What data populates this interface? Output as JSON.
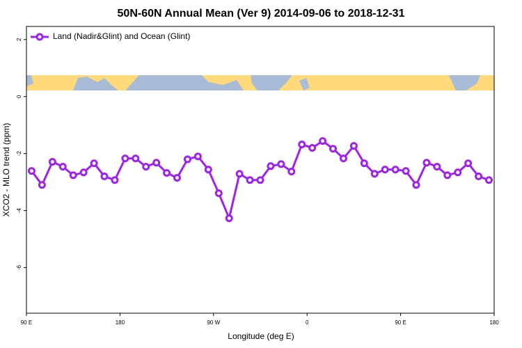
{
  "chart_data": {
    "type": "line",
    "title": "50N-60N Annual Mean (Ver 9)   2014-09-06 to 2018-12-31",
    "x_label": "Longitude (deg E)",
    "y_label": "XCO2 - MLO trend (ppm)",
    "x": [
      95,
      105,
      115,
      125,
      135,
      145,
      155,
      165,
      175,
      185,
      195,
      205,
      215,
      225,
      235,
      245,
      255,
      265,
      275,
      285,
      295,
      305,
      315,
      325,
      335,
      345,
      355,
      365,
      375,
      385,
      395,
      405,
      415,
      425,
      435,
      445,
      455,
      465,
      475,
      485,
      495,
      505,
      515,
      525,
      535
    ],
    "series": [
      {
        "name": "Land (Nadir&Glint) and Ocean (Glint)",
        "color": "#a020f0",
        "values": [
          -2.61,
          -3.1,
          -2.29,
          -2.46,
          -2.76,
          -2.66,
          -2.34,
          -2.8,
          -2.93,
          -2.17,
          -2.17,
          -2.46,
          -2.32,
          -2.68,
          -2.85,
          -2.2,
          -2.1,
          -2.56,
          -3.39,
          -4.27,
          -2.71,
          -2.93,
          -2.93,
          -2.44,
          -2.37,
          -2.63,
          -1.68,
          -1.8,
          -1.56,
          -1.83,
          -2.17,
          -1.73,
          -2.34,
          -2.71,
          -2.56,
          -2.56,
          -2.61,
          -3.1,
          -2.32,
          -2.46,
          -2.76,
          -2.66,
          -2.34,
          -2.8,
          -2.93
        ]
      }
    ],
    "xlim": [
      90,
      540
    ],
    "xticks": [
      {
        "value": 90,
        "label": "90 E"
      },
      180,
      {
        "value": 270,
        "label": "90 W"
      },
      {
        "value": 360,
        "label": "0"
      },
      {
        "value": 450,
        "label": "90 E"
      },
      {
        "value": 540,
        "label": "180"
      }
    ],
    "ylim": [
      -7.6,
      2.46
    ],
    "yticks": [
      2,
      0,
      -2,
      -4,
      -6
    ],
    "grid": false,
    "legend": "top-left"
  }
}
